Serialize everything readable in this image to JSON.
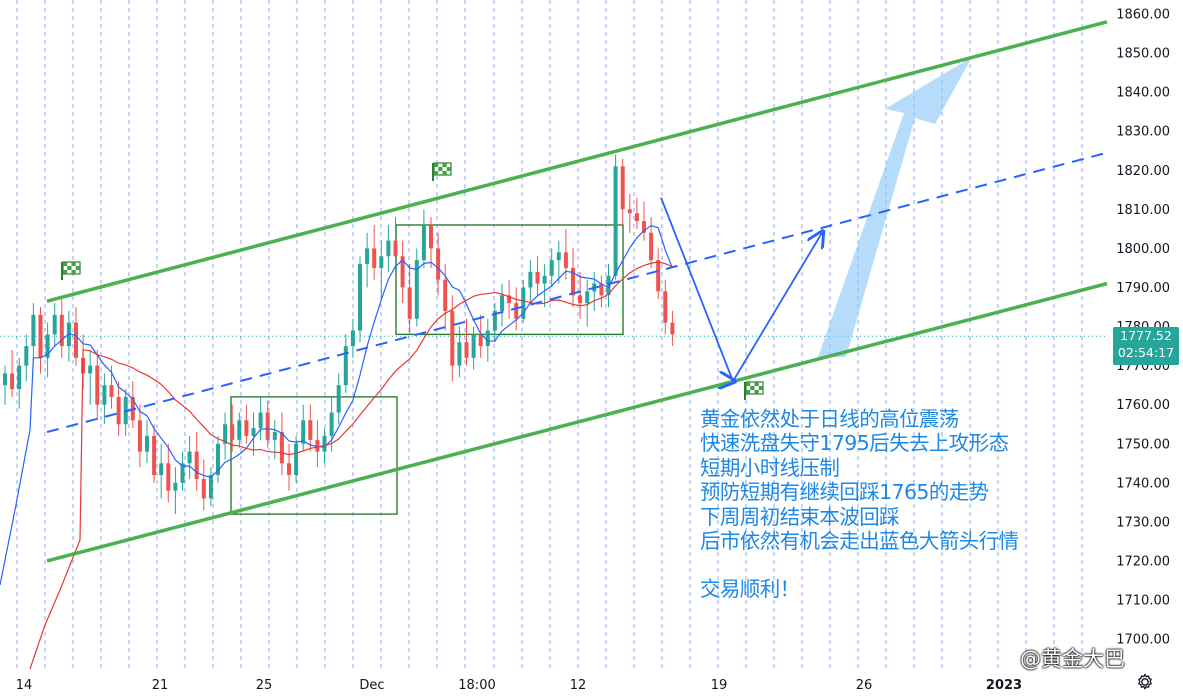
{
  "chart_data": {
    "type": "candlestick",
    "instrument_note": "",
    "y_axis": {
      "ticks": [
        "1860.00",
        "1850.00",
        "1840.00",
        "1830.00",
        "1820.00",
        "1810.00",
        "1800.00",
        "1790.00",
        "1780.00",
        "1770.00",
        "1760.00",
        "1750.00",
        "1740.00",
        "1730.00",
        "1720.00",
        "1710.00",
        "1700.00"
      ],
      "range": [
        1697,
        1862
      ]
    },
    "x_axis": {
      "labels": [
        {
          "text": "14",
          "bold": false
        },
        {
          "text": "21",
          "bold": false
        },
        {
          "text": "25",
          "bold": false
        },
        {
          "text": "Dec",
          "bold": false
        },
        {
          "text": "18:00",
          "bold": false
        },
        {
          "text": "12",
          "bold": false
        },
        {
          "text": "19",
          "bold": false
        },
        {
          "text": "26",
          "bold": false
        },
        {
          "text": "2023",
          "bold": true
        }
      ]
    },
    "last_price": {
      "price": "1777.52",
      "countdown": "02:54:17",
      "value": 1777.52
    },
    "colors": {
      "up": "#26a69a",
      "down": "#ef5350",
      "ma_blue": "#2962ff",
      "ma_red": "#e53935",
      "channel": "#4caf50",
      "midline": "#2962ff",
      "arrow_small": "#2962ff",
      "arrow_big": "#90caf9",
      "session_lines": "#5b8def",
      "box": "#2e7d32",
      "annotation": "#1e88e5"
    },
    "annotation_lines": [
      "黄金依然处于日线的高位震荡",
      "快速洗盘失守1795后失去上攻形态",
      "短期小时线压制",
      "预防短期有继续回踩1765的走势",
      "下周周初结束本波回踩",
      "后市依然有机会走出蓝色大箭头行情"
    ],
    "annotation_closing": "交易顺利！",
    "watermark": "@黄金大巴",
    "drawn_levels": {
      "channel_upper": [
        [
          0,
          1786.5
        ],
        [
          1,
          1858
        ]
      ],
      "channel_lower": [
        [
          0,
          1720
        ],
        [
          1,
          1791
        ]
      ],
      "channel_mid": [
        [
          0,
          1753
        ],
        [
          1,
          1824.5
        ]
      ],
      "box1": {
        "low": 1732,
        "high": 1762
      },
      "box2": {
        "low": 1778,
        "high": 1806
      },
      "forecast_path": [
        1813,
        1766,
        1804
      ]
    },
    "series_note": "OHLC approximated from the candlestick chart",
    "ohlc": [
      [
        1765,
        1770,
        1760,
        1768
      ],
      [
        1768,
        1774,
        1762,
        1764
      ],
      [
        1764,
        1772,
        1759,
        1770
      ],
      [
        1770,
        1778,
        1766,
        1775
      ],
      [
        1775,
        1786,
        1771,
        1783
      ],
      [
        1783,
        1785,
        1768,
        1772
      ],
      [
        1772,
        1781,
        1767,
        1778
      ],
      [
        1778,
        1786,
        1775,
        1783
      ],
      [
        1783,
        1787,
        1772,
        1775
      ],
      [
        1775,
        1784,
        1771,
        1781
      ],
      [
        1781,
        1785,
        1770,
        1772
      ],
      [
        1772,
        1778,
        1764,
        1768
      ],
      [
        1768,
        1774,
        1760,
        1770
      ],
      [
        1770,
        1774,
        1756,
        1760
      ],
      [
        1760,
        1768,
        1755,
        1765
      ],
      [
        1765,
        1770,
        1759,
        1762
      ],
      [
        1762,
        1766,
        1752,
        1755
      ],
      [
        1755,
        1764,
        1752,
        1762
      ],
      [
        1762,
        1766,
        1754,
        1756
      ],
      [
        1756,
        1760,
        1744,
        1748
      ],
      [
        1748,
        1756,
        1745,
        1752
      ],
      [
        1752,
        1755,
        1740,
        1742
      ],
      [
        1742,
        1750,
        1736,
        1745
      ],
      [
        1745,
        1750,
        1735,
        1738
      ],
      [
        1738,
        1744,
        1732,
        1740
      ],
      [
        1740,
        1748,
        1738,
        1745
      ],
      [
        1745,
        1752,
        1741,
        1748
      ],
      [
        1748,
        1753,
        1738,
        1741
      ],
      [
        1741,
        1746,
        1733,
        1736
      ],
      [
        1736,
        1744,
        1734,
        1742
      ],
      [
        1742,
        1752,
        1740,
        1750
      ],
      [
        1750,
        1758,
        1746,
        1755
      ],
      [
        1755,
        1760,
        1748,
        1751
      ],
      [
        1751,
        1758,
        1749,
        1756
      ],
      [
        1756,
        1760,
        1750,
        1752
      ],
      [
        1752,
        1758,
        1747,
        1754
      ],
      [
        1754,
        1762,
        1751,
        1758
      ],
      [
        1758,
        1761,
        1749,
        1751
      ],
      [
        1751,
        1756,
        1746,
        1753
      ],
      [
        1753,
        1758,
        1742,
        1745
      ],
      [
        1745,
        1750,
        1738,
        1742
      ],
      [
        1742,
        1752,
        1740,
        1750
      ],
      [
        1750,
        1760,
        1748,
        1756
      ],
      [
        1756,
        1760,
        1748,
        1751
      ],
      [
        1751,
        1756,
        1744,
        1748
      ],
      [
        1748,
        1754,
        1745,
        1752
      ],
      [
        1752,
        1762,
        1748,
        1758
      ],
      [
        1758,
        1768,
        1755,
        1765
      ],
      [
        1765,
        1778,
        1763,
        1775
      ],
      [
        1775,
        1782,
        1772,
        1779
      ],
      [
        1779,
        1798,
        1776,
        1796
      ],
      [
        1796,
        1804,
        1790,
        1800
      ],
      [
        1800,
        1806,
        1792,
        1795
      ],
      [
        1795,
        1802,
        1787,
        1798
      ],
      [
        1798,
        1806,
        1794,
        1802
      ],
      [
        1802,
        1808,
        1796,
        1798
      ],
      [
        1798,
        1802,
        1786,
        1790
      ],
      [
        1790,
        1796,
        1778,
        1782
      ],
      [
        1782,
        1800,
        1780,
        1797
      ],
      [
        1797,
        1810,
        1795,
        1806
      ],
      [
        1806,
        1808,
        1795,
        1800
      ],
      [
        1800,
        1804,
        1788,
        1792
      ],
      [
        1792,
        1796,
        1779,
        1784
      ],
      [
        1784,
        1788,
        1766,
        1770
      ],
      [
        1770,
        1780,
        1767,
        1776
      ],
      [
        1776,
        1782,
        1770,
        1772
      ],
      [
        1772,
        1780,
        1769,
        1778
      ],
      [
        1778,
        1783,
        1772,
        1775
      ],
      [
        1775,
        1782,
        1771,
        1779
      ],
      [
        1779,
        1786,
        1776,
        1784
      ],
      [
        1784,
        1791,
        1780,
        1788
      ],
      [
        1788,
        1792,
        1782,
        1786
      ],
      [
        1786,
        1790,
        1779,
        1782
      ],
      [
        1782,
        1792,
        1781,
        1790
      ],
      [
        1790,
        1797,
        1786,
        1794
      ],
      [
        1794,
        1798,
        1788,
        1791
      ],
      [
        1791,
        1796,
        1785,
        1793
      ],
      [
        1793,
        1800,
        1790,
        1797
      ],
      [
        1797,
        1802,
        1791,
        1799
      ],
      [
        1799,
        1805,
        1792,
        1795
      ],
      [
        1795,
        1800,
        1785,
        1788
      ],
      [
        1788,
        1794,
        1782,
        1786
      ],
      [
        1786,
        1792,
        1780,
        1789
      ],
      [
        1789,
        1794,
        1784,
        1791
      ],
      [
        1791,
        1793,
        1785,
        1788
      ],
      [
        1788,
        1796,
        1785,
        1793
      ],
      [
        1793,
        1824,
        1792,
        1821
      ],
      [
        1821,
        1823,
        1806,
        1810
      ],
      [
        1810,
        1814,
        1804,
        1809
      ],
      [
        1809,
        1813,
        1805,
        1807
      ],
      [
        1807,
        1812,
        1802,
        1804
      ],
      [
        1804,
        1808,
        1795,
        1797
      ],
      [
        1797,
        1800,
        1787,
        1789
      ],
      [
        1789,
        1792,
        1778,
        1781
      ],
      [
        1781,
        1784,
        1775,
        1778
      ]
    ]
  }
}
